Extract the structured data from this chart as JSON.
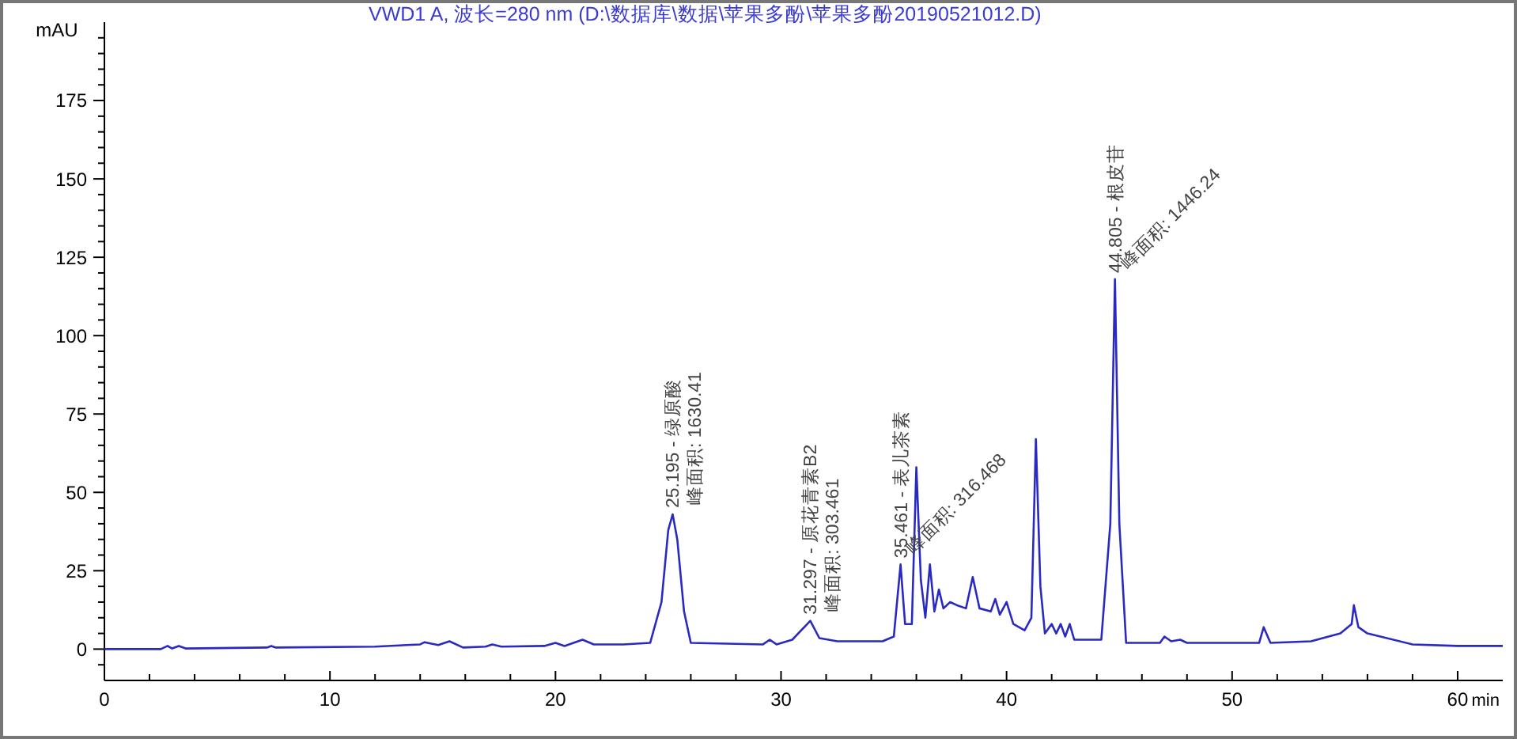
{
  "chart_data": {
    "type": "line",
    "title": "VWD1 A, 波长=280 nm (D:\\数据库\\数据\\苹果多酚\\苹果多酚20190521012.D)",
    "xlabel": "min",
    "ylabel": "mAU",
    "xlim": [
      0,
      62
    ],
    "ylim": [
      -10,
      200
    ],
    "xticks": [
      0,
      {
        "value": 2,
        "label": null
      },
      {
        "value": 4,
        "label": null
      },
      {
        "value": 6,
        "label": null
      },
      {
        "value": 8,
        "label": null
      },
      10,
      {
        "value": 12,
        "label": null
      },
      {
        "value": 14,
        "label": null
      },
      {
        "value": 16,
        "label": null
      },
      {
        "value": 18,
        "label": null
      },
      20,
      {
        "value": 22,
        "label": null
      },
      {
        "value": 24,
        "label": null
      },
      {
        "value": 26,
        "label": null
      },
      {
        "value": 28,
        "label": null
      },
      30,
      {
        "value": 32,
        "label": null
      },
      {
        "value": 34,
        "label": null
      },
      {
        "value": 36,
        "label": null
      },
      {
        "value": 38,
        "label": null
      },
      40,
      {
        "value": 42,
        "label": null
      },
      {
        "value": 44,
        "label": null
      },
      {
        "value": 46,
        "label": null
      },
      {
        "value": 48,
        "label": null
      },
      50,
      {
        "value": 52,
        "label": null
      },
      {
        "value": 54,
        "label": null
      },
      {
        "value": 56,
        "label": null
      },
      {
        "value": 58,
        "label": null
      },
      60
    ],
    "yticks": [
      {
        "value": -5,
        "label": null
      },
      0,
      {
        "value": 5,
        "label": null
      },
      {
        "value": 10,
        "label": null
      },
      {
        "value": 15,
        "label": null
      },
      {
        "value": 20,
        "label": null
      },
      25,
      {
        "value": 30,
        "label": null
      },
      {
        "value": 35,
        "label": null
      },
      {
        "value": 40,
        "label": null
      },
      {
        "value": 45,
        "label": null
      },
      50,
      {
        "value": 55,
        "label": null
      },
      {
        "value": 60,
        "label": null
      },
      {
        "value": 65,
        "label": null
      },
      {
        "value": 70,
        "label": null
      },
      75,
      {
        "value": 80,
        "label": null
      },
      {
        "value": 85,
        "label": null
      },
      {
        "value": 90,
        "label": null
      },
      {
        "value": 95,
        "label": null
      },
      100,
      {
        "value": 105,
        "label": null
      },
      {
        "value": 110,
        "label": null
      },
      {
        "value": 115,
        "label": null
      },
      {
        "value": 120,
        "label": null
      },
      125,
      {
        "value": 130,
        "label": null
      },
      {
        "value": 135,
        "label": null
      },
      {
        "value": 140,
        "label": null
      },
      {
        "value": 145,
        "label": null
      },
      150,
      {
        "value": 155,
        "label": null
      },
      {
        "value": 160,
        "label": null
      },
      {
        "value": 165,
        "label": null
      },
      {
        "value": 170,
        "label": null
      },
      175,
      {
        "value": 180,
        "label": null
      },
      {
        "value": 185,
        "label": null
      },
      {
        "value": 190,
        "label": null
      },
      {
        "value": 195,
        "label": null
      }
    ],
    "grid": false,
    "marker": "none",
    "line_style": "solid",
    "series": [
      {
        "color": "#2a2ac0",
        "x": [
          0,
          2.5,
          2.8,
          3.0,
          3.3,
          3.6,
          7.2,
          7.4,
          7.6,
          12,
          14,
          14.2,
          14.8,
          15.3,
          15.9,
          16.9,
          17.2,
          17.6,
          19.5,
          20,
          20.4,
          21.2,
          21.7,
          23,
          24.2,
          24.7,
          25.0,
          25.195,
          25.4,
          25.7,
          26,
          29.2,
          29.5,
          29.8,
          30.5,
          31.297,
          31.7,
          32.5,
          34.5,
          35.0,
          35.3,
          35.5,
          35.8,
          36.0,
          36.2,
          36.4,
          36.6,
          36.8,
          37.0,
          37.2,
          37.5,
          37.8,
          38.2,
          38.5,
          38.8,
          39.3,
          39.5,
          39.7,
          40.0,
          40.3,
          40.8,
          41.1,
          41.3,
          41.5,
          41.7,
          42,
          42.2,
          42.4,
          42.6,
          42.8,
          43,
          44.2,
          44.6,
          44.805,
          45.0,
          45.3,
          46.8,
          47.0,
          47.3,
          47.7,
          48,
          51.2,
          51.4,
          51.7,
          53.5,
          54.8,
          55.3,
          55.4,
          55.6,
          56,
          58,
          60,
          62
        ],
        "values": [
          0,
          0,
          1,
          0.2,
          1,
          0.2,
          0.5,
          1,
          0.5,
          0.8,
          1.5,
          2.2,
          1.3,
          2.5,
          0.5,
          0.8,
          1.5,
          0.8,
          1,
          2,
          1,
          3,
          1.5,
          1.5,
          2,
          15,
          38,
          43,
          35,
          12,
          2,
          1.5,
          3,
          1.5,
          3,
          9,
          3.5,
          2.5,
          2.5,
          4,
          27,
          8,
          8,
          58,
          22,
          10,
          27,
          12,
          19,
          13,
          15,
          14,
          13,
          23,
          13,
          12,
          16,
          11,
          15,
          8,
          6,
          10,
          67,
          20,
          5,
          8,
          5,
          8,
          4,
          8,
          3,
          3,
          40,
          118,
          40,
          2,
          2,
          4,
          2.5,
          3,
          2,
          2,
          7,
          2,
          2.5,
          5,
          8,
          14,
          7,
          5,
          1.5,
          1,
          1
        ]
      }
    ],
    "annotations": [
      {
        "text": "25.195 - 绿原酸",
        "x": 25.195,
        "y": 43
      },
      {
        "text": "峰面积: 1630.41",
        "x": 25.195,
        "y": 43
      },
      {
        "text": "31.297 - 原花青素B2",
        "x": 31.297,
        "y": 9
      },
      {
        "text": "峰面积: 303.461",
        "x": 31.297,
        "y": 9
      },
      {
        "text": "35.461 - 表儿茶素",
        "x": 35.3,
        "y": 27
      },
      {
        "text": "峰面积: 316.468",
        "x": 35.3,
        "y": 27
      },
      {
        "text": "44.805 - 根皮苷",
        "x": 44.805,
        "y": 118
      },
      {
        "text": "峰面积: 1446.24",
        "x": 44.805,
        "y": 118
      }
    ]
  }
}
